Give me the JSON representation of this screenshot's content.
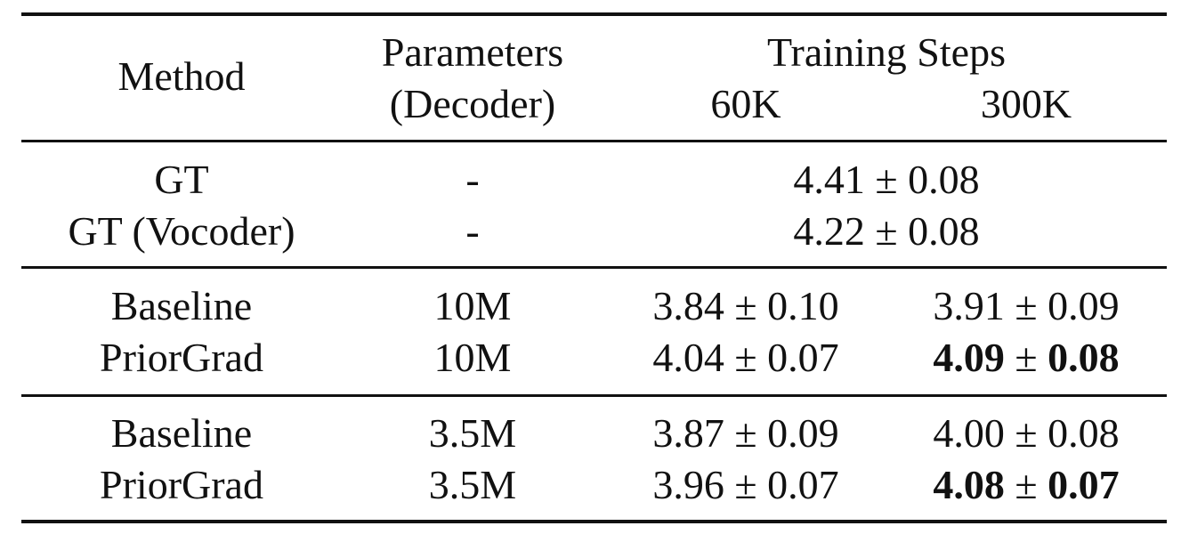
{
  "table": {
    "header": {
      "method": "Method",
      "params_line1": "Parameters",
      "params_line2": "(Decoder)",
      "steps_title": "Training Steps",
      "steps_60k": "60K",
      "steps_300k": "300K"
    },
    "rows": [
      {
        "method": "GT",
        "params": "-",
        "span": "4.41 ± 0.08"
      },
      {
        "method": "GT (Vocoder)",
        "params": "-",
        "span": "4.22 ± 0.08"
      },
      {
        "method": "Baseline",
        "params": "10M",
        "v60k": "3.84 ± 0.10",
        "v300k": "3.91 ± 0.09"
      },
      {
        "method": "PriorGrad",
        "params": "10M",
        "v60k": "4.04 ± 0.07",
        "v300k_mean": "4.09",
        "v300k_pm": "±",
        "v300k_sd": "0.08"
      },
      {
        "method": "Baseline",
        "params": "3.5M",
        "v60k": "3.87 ± 0.09",
        "v300k": "4.00 ± 0.08"
      },
      {
        "method": "PriorGrad",
        "params": "3.5M",
        "v60k": "3.96 ± 0.07",
        "v300k_mean": "4.08",
        "v300k_pm": "±",
        "v300k_sd": "0.07"
      }
    ]
  }
}
